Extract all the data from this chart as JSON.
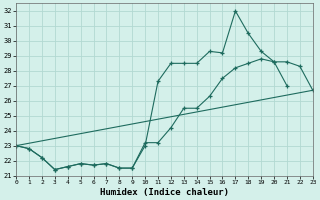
{
  "xlabel": "Humidex (Indice chaleur)",
  "xlim": [
    0,
    23
  ],
  "ylim": [
    21,
    32.5
  ],
  "yticks": [
    21,
    22,
    23,
    24,
    25,
    26,
    27,
    28,
    29,
    30,
    31,
    32
  ],
  "xticks": [
    0,
    1,
    2,
    3,
    4,
    5,
    6,
    7,
    8,
    9,
    10,
    11,
    12,
    13,
    14,
    15,
    16,
    17,
    18,
    19,
    20,
    21,
    22,
    23
  ],
  "line_color": "#1e6b5e",
  "bg_color": "#d4f0ea",
  "grid_color": "#b2d9d2",
  "line1_x": [
    0,
    1,
    2,
    3,
    4,
    5,
    6,
    7,
    8,
    9,
    10,
    11,
    12,
    13,
    14,
    15,
    16,
    17,
    18,
    19,
    20,
    21
  ],
  "line1_y": [
    23.0,
    22.8,
    22.2,
    21.4,
    21.6,
    21.8,
    21.7,
    21.8,
    21.5,
    21.5,
    23.0,
    27.3,
    28.5,
    28.5,
    28.5,
    29.3,
    29.2,
    32.0,
    30.5,
    29.3,
    28.6,
    27.0
  ],
  "line2_x": [
    0,
    1,
    2,
    3,
    4,
    5,
    6,
    7,
    8,
    9,
    10,
    11,
    12,
    13,
    14,
    15,
    16,
    17,
    18,
    19,
    20,
    21,
    22,
    23
  ],
  "line2_y": [
    23.0,
    22.8,
    22.2,
    21.4,
    21.6,
    21.8,
    21.7,
    21.8,
    21.5,
    21.5,
    23.2,
    23.2,
    24.2,
    25.5,
    25.5,
    26.3,
    27.5,
    28.2,
    28.5,
    28.8,
    28.6,
    28.6,
    28.3,
    26.7
  ],
  "line3_x": [
    0,
    23
  ],
  "line3_y": [
    23.0,
    26.7
  ]
}
